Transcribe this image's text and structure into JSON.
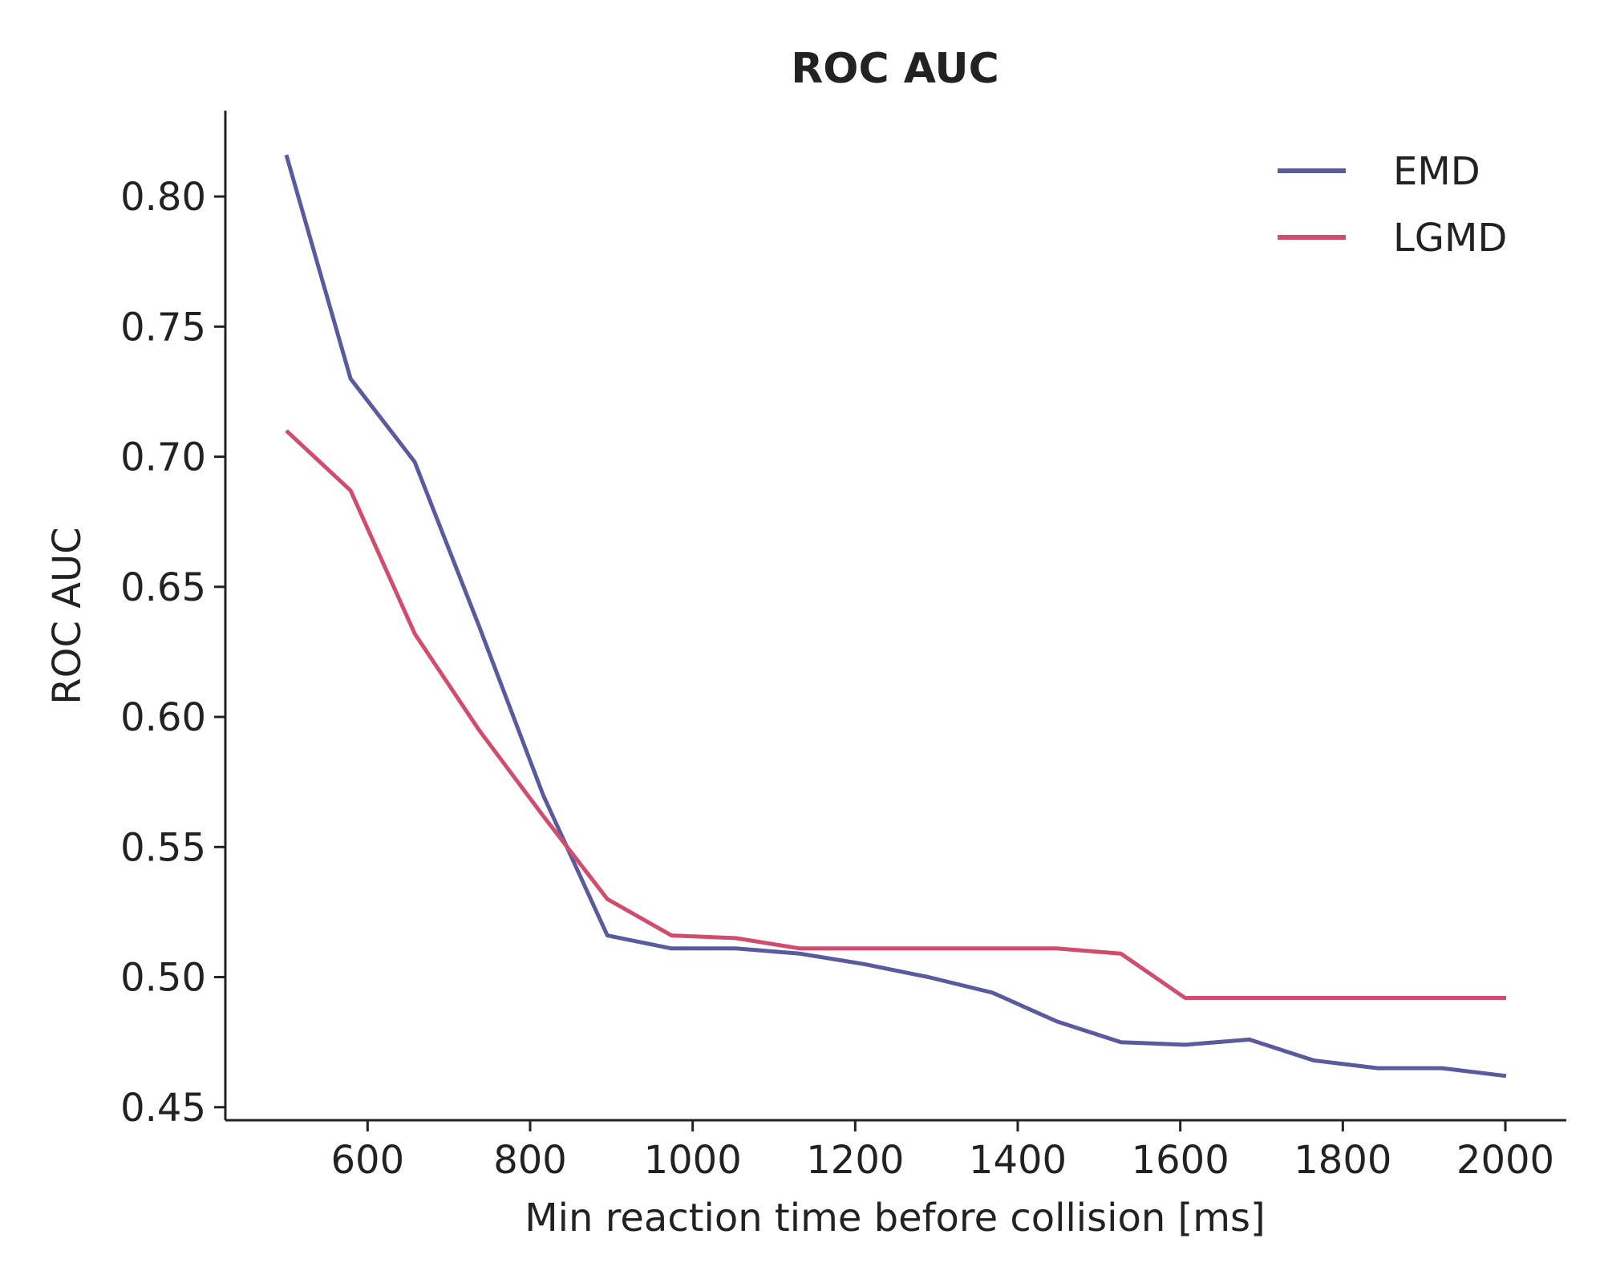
{
  "chart_data": {
    "type": "line",
    "title": "ROC AUC",
    "xlabel": "Min reaction time before collision [ms]",
    "ylabel": "ROC AUC",
    "xlim": [
      425,
      2075
    ],
    "ylim": [
      0.445,
      0.833
    ],
    "xticks": [
      600,
      800,
      1000,
      1200,
      1400,
      1600,
      1800,
      2000
    ],
    "xtick_labels": [
      "600",
      "800",
      "1000",
      "1200",
      "1400",
      "1600",
      "1800",
      "2000"
    ],
    "yticks": [
      0.45,
      0.5,
      0.55,
      0.6,
      0.65,
      0.7,
      0.75,
      0.8
    ],
    "ytick_labels": [
      "0.45",
      "0.50",
      "0.55",
      "0.60",
      "0.65",
      "0.70",
      "0.75",
      "0.80"
    ],
    "grid": false,
    "legend_position": "top-right",
    "x": [
      500,
      579,
      658,
      737,
      816,
      895,
      974,
      1053,
      1132,
      1211,
      1290,
      1369,
      1448,
      1527,
      1606,
      1685,
      1764,
      1843,
      1922,
      2001
    ],
    "series": [
      {
        "name": "EMD",
        "color": "#5a5a9e",
        "values": [
          0.816,
          0.73,
          0.698,
          0.635,
          0.57,
          0.516,
          0.511,
          0.511,
          0.509,
          0.505,
          0.5,
          0.494,
          0.483,
          0.475,
          0.474,
          0.476,
          0.468,
          0.465,
          0.465,
          0.462
        ]
      },
      {
        "name": "LGMD",
        "color": "#d24c6e",
        "values": [
          0.71,
          0.687,
          0.632,
          0.595,
          0.562,
          0.53,
          0.516,
          0.515,
          0.511,
          0.511,
          0.511,
          0.511,
          0.511,
          0.509,
          0.492,
          0.492,
          0.492,
          0.492,
          0.492,
          0.492
        ]
      }
    ]
  }
}
